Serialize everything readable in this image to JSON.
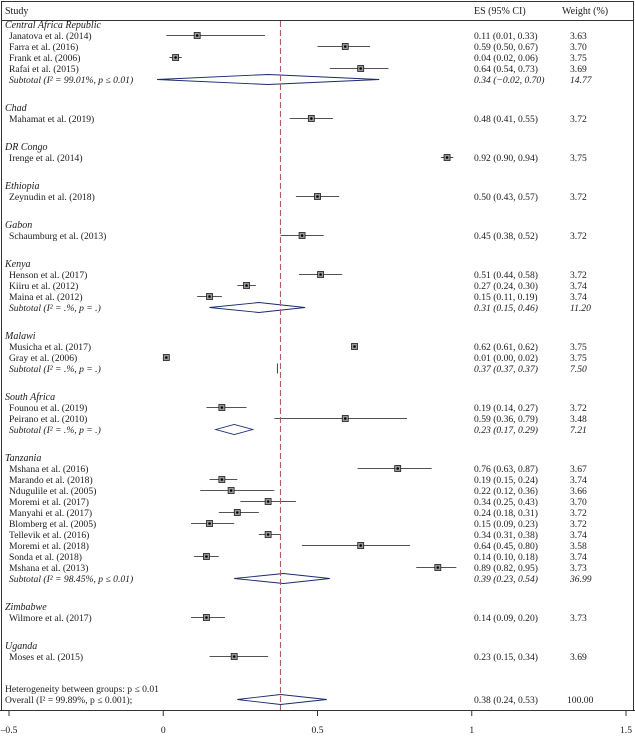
{
  "chart_data": {
    "type": "forest",
    "headers": {
      "study": "Study",
      "es": "ES (95% CI)",
      "weight": "Weight (%)"
    },
    "xlim": [
      -0.5,
      1.5
    ],
    "xticks": [
      {
        "v": -0.5,
        "label": "–0.5"
      },
      {
        "v": 0,
        "label": "0"
      },
      {
        "v": 0.5,
        "label": "0.5"
      },
      {
        "v": 1,
        "label": "1"
      },
      {
        "v": 1.5,
        "label": "1.5"
      }
    ],
    "reference_line": 0.38,
    "groups": [
      {
        "name": "Central Africa Republic",
        "studies": [
          {
            "label": "Janatova et al. (2014)",
            "es": 0.11,
            "lo": 0.01,
            "hi": 0.33,
            "ci": "0.11 (0.01, 0.33)",
            "weight": "3.63"
          },
          {
            "label": "Farra et al. (2016)",
            "es": 0.59,
            "lo": 0.5,
            "hi": 0.67,
            "ci": "0.59 (0.50, 0.67)",
            "weight": "3.70"
          },
          {
            "label": "Frank et al. (2006)",
            "es": 0.04,
            "lo": 0.02,
            "hi": 0.06,
            "ci": "0.04 (0.02, 0.06)",
            "weight": "3.75"
          },
          {
            "label": "Rafai et al. (2015)",
            "es": 0.64,
            "lo": 0.54,
            "hi": 0.73,
            "ci": "0.64 (0.54, 0.73)",
            "weight": "3.69"
          }
        ],
        "subtotal": {
          "label": "Subtotal (I² = 99.01%, p ≤ 0.01)",
          "es": 0.34,
          "lo": -0.02,
          "hi": 0.7,
          "ci": "0.34 (−0.02, 0.70)",
          "weight": "14.77"
        }
      },
      {
        "name": "Chad",
        "studies": [
          {
            "label": "Mahamat et al. (2019)",
            "es": 0.48,
            "lo": 0.41,
            "hi": 0.55,
            "ci": "0.48 (0.41, 0.55)",
            "weight": "3.72"
          }
        ]
      },
      {
        "name": "DR Congo",
        "studies": [
          {
            "label": "Irenge et al. (2014)",
            "es": 0.92,
            "lo": 0.9,
            "hi": 0.94,
            "ci": "0.92 (0.90, 0.94)",
            "weight": "3.75"
          }
        ]
      },
      {
        "name": "Ethiopia",
        "studies": [
          {
            "label": "Zeynudin et al. (2018)",
            "es": 0.5,
            "lo": 0.43,
            "hi": 0.57,
            "ci": "0.50 (0.43, 0.57)",
            "weight": "3.72"
          }
        ]
      },
      {
        "name": "Gabon",
        "studies": [
          {
            "label": "Schaumburg et al. (2013)",
            "es": 0.45,
            "lo": 0.38,
            "hi": 0.52,
            "ci": "0.45 (0.38, 0.52)",
            "weight": "3.72"
          }
        ]
      },
      {
        "name": "Kenya",
        "studies": [
          {
            "label": "Henson et al. (2017)",
            "es": 0.51,
            "lo": 0.44,
            "hi": 0.58,
            "ci": "0.51 (0.44, 0.58)",
            "weight": "3.72"
          },
          {
            "label": "Kiiru et al. (2012)",
            "es": 0.27,
            "lo": 0.24,
            "hi": 0.3,
            "ci": "0.27 (0.24, 0.30)",
            "weight": "3.74"
          },
          {
            "label": "Maina et al. (2012)",
            "es": 0.15,
            "lo": 0.11,
            "hi": 0.19,
            "ci": "0.15 (0.11, 0.19)",
            "weight": "3.74"
          }
        ],
        "subtotal": {
          "label": "Subtotal (I² = .%, p = .)",
          "es": 0.31,
          "lo": 0.15,
          "hi": 0.46,
          "ci": "0.31 (0.15, 0.46)",
          "weight": "11.20"
        }
      },
      {
        "name": "Malawi",
        "studies": [
          {
            "label": "Musicha et al. (2017)",
            "es": 0.62,
            "lo": 0.61,
            "hi": 0.62,
            "ci": "0.62 (0.61, 0.62)",
            "weight": "3.75"
          },
          {
            "label": "Gray et al. (2006)",
            "es": 0.01,
            "lo": 0.0,
            "hi": 0.02,
            "ci": "0.01 (0.00, 0.02)",
            "weight": "3.75"
          }
        ],
        "subtotal": {
          "label": "Subtotal (I² = .%, p = .)",
          "es": 0.37,
          "lo": 0.37,
          "hi": 0.37,
          "ci": "0.37 (0.37, 0.37)",
          "weight": "7.50"
        }
      },
      {
        "name": "South Africa",
        "studies": [
          {
            "label": "Founou et al. (2019)",
            "es": 0.19,
            "lo": 0.14,
            "hi": 0.27,
            "ci": "0.19 (0.14, 0.27)",
            "weight": "3.72"
          },
          {
            "label": "Peirano et al. (2010)",
            "es": 0.59,
            "lo": 0.36,
            "hi": 0.79,
            "ci": "0.59 (0.36, 0.79)",
            "weight": "3.48"
          }
        ],
        "subtotal": {
          "label": "Subtotal (I² = .%, p = .)",
          "es": 0.23,
          "lo": 0.17,
          "hi": 0.29,
          "ci": "0.23 (0.17, 0.29)",
          "weight": "7.21"
        }
      },
      {
        "name": "Tanzania",
        "studies": [
          {
            "label": "Mshana et al. (2016)",
            "es": 0.76,
            "lo": 0.63,
            "hi": 0.87,
            "ci": "0.76 (0.63, 0.87)",
            "weight": "3.67"
          },
          {
            "label": "Marando et al. (2018)",
            "es": 0.19,
            "lo": 0.15,
            "hi": 0.24,
            "ci": "0.19 (0.15, 0.24)",
            "weight": "3.74"
          },
          {
            "label": "Ndugulile et al. (2005)",
            "es": 0.22,
            "lo": 0.12,
            "hi": 0.36,
            "ci": "0.22 (0.12, 0.36)",
            "weight": "3.66"
          },
          {
            "label": "Moremi et al. (2017)",
            "es": 0.34,
            "lo": 0.25,
            "hi": 0.43,
            "ci": "0.34 (0.25, 0.43)",
            "weight": "3.70"
          },
          {
            "label": "Manyahi et al. (2017)",
            "es": 0.24,
            "lo": 0.18,
            "hi": 0.31,
            "ci": "0.24 (0.18, 0.31)",
            "weight": "3.72"
          },
          {
            "label": "Blomberg et al. (2005)",
            "es": 0.15,
            "lo": 0.09,
            "hi": 0.23,
            "ci": "0.15 (0.09, 0.23)",
            "weight": "3.72"
          },
          {
            "label": "Tellevik et al. (2016)",
            "es": 0.34,
            "lo": 0.31,
            "hi": 0.38,
            "ci": "0.34 (0.31, 0.38)",
            "weight": "3.74"
          },
          {
            "label": "Moremi et al. (2018)",
            "es": 0.64,
            "lo": 0.45,
            "hi": 0.8,
            "ci": "0.64 (0.45, 0.80)",
            "weight": "3.58"
          },
          {
            "label": "Sonda et al. (2018)",
            "es": 0.14,
            "lo": 0.1,
            "hi": 0.18,
            "ci": "0.14 (0.10, 0.18)",
            "weight": "3.74"
          },
          {
            "label": "Mshana et al. (2013)",
            "es": 0.89,
            "lo": 0.82,
            "hi": 0.95,
            "ci": "0.89 (0.82, 0.95)",
            "weight": "3.73"
          }
        ],
        "subtotal": {
          "label": "Subtotal (I² = 98.45%, p ≤ 0.01)",
          "es": 0.39,
          "lo": 0.23,
          "hi": 0.54,
          "ci": "0.39 (0.23, 0.54)",
          "weight": "36.99"
        }
      },
      {
        "name": "Zimbabwe",
        "studies": [
          {
            "label": "Wilmore et al. (2017)",
            "es": 0.14,
            "lo": 0.09,
            "hi": 0.2,
            "ci": "0.14 (0.09, 0.20)",
            "weight": "3.73"
          }
        ]
      },
      {
        "name": "Uganda",
        "studies": [
          {
            "label": "Moses et al. (2015)",
            "es": 0.23,
            "lo": 0.15,
            "hi": 0.34,
            "ci": "0.23 (0.15, 0.34)",
            "weight": "3.69"
          }
        ]
      }
    ],
    "heterogeneity": "Heterogeneity between groups: p ≤ 0.01",
    "overall": {
      "label": "Overall (I² = 99.89%, p ≤ 0.001);",
      "es": 0.38,
      "lo": 0.24,
      "hi": 0.53,
      "ci": "0.38 (0.24, 0.53)",
      "weight": "100.00"
    },
    "colors": {
      "reference_line": "#b05a6a",
      "text": "#1a1a1a",
      "frame": "#333333"
    }
  }
}
